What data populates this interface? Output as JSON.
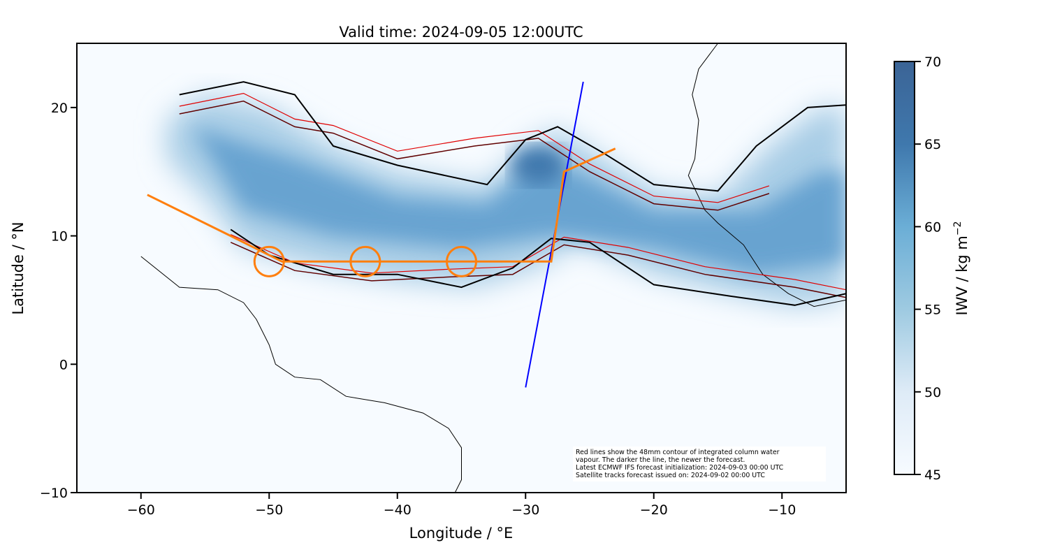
{
  "chart_data": {
    "type": "map",
    "title": "Valid time: 2024-09-05 12:00UTC",
    "xlabel": "Longitude / °E",
    "ylabel": "Latitude / °N",
    "xlim": [
      -65,
      -5
    ],
    "ylim": [
      -10,
      25
    ],
    "xticks": [
      -60,
      -50,
      -40,
      -30,
      -20,
      -10
    ],
    "xtick_labels": [
      "−60",
      "−50",
      "−40",
      "−30",
      "−20",
      "−10"
    ],
    "yticks": [
      -10,
      0,
      10,
      20
    ],
    "ytick_labels": [
      "−10",
      "0",
      "10",
      "20"
    ],
    "colorbar": {
      "label": "IWV / kg m",
      "label_sup": "−2",
      "range": [
        45,
        70
      ],
      "ticks": [
        45,
        50,
        55,
        60,
        65,
        70
      ],
      "tick_labels": [
        "45",
        "50",
        "55",
        "60",
        "65",
        "70"
      ],
      "colormap": [
        "#f7fbff",
        "#deebf7",
        "#9ecae1",
        "#6baed6",
        "#3f78ad",
        "#3b6496"
      ]
    },
    "orange_track": [
      [
        -59.5,
        13.2
      ],
      [
        -53,
        10
      ],
      [
        -49,
        8
      ],
      [
        -28,
        8
      ],
      [
        -27,
        15
      ],
      [
        -23,
        16.8
      ]
    ],
    "orange_circles": [
      [
        -50,
        8
      ],
      [
        -42.5,
        8
      ],
      [
        -35,
        8
      ]
    ],
    "blue_track": [
      [
        -30,
        -1.8
      ],
      [
        -25.5,
        22
      ]
    ],
    "iwv_band": [
      [
        -58,
        19
      ],
      [
        -55,
        21
      ],
      [
        -50,
        20
      ],
      [
        -45,
        17
      ],
      [
        -40,
        15
      ],
      [
        -33,
        14
      ],
      [
        -30,
        17
      ],
      [
        -27.5,
        18.3
      ],
      [
        -24,
        16
      ],
      [
        -20,
        13.5
      ],
      [
        -15,
        13
      ],
      [
        -11,
        17
      ],
      [
        -7,
        20
      ],
      [
        -5,
        20
      ],
      [
        -5,
        5
      ],
      [
        -9,
        4.5
      ],
      [
        -14,
        5.5
      ],
      [
        -20,
        7
      ],
      [
        -26,
        9.5
      ],
      [
        -29,
        7.5
      ],
      [
        -34,
        6
      ],
      [
        -40,
        6.5
      ],
      [
        -46,
        7.5
      ],
      [
        -52,
        9
      ],
      [
        -55,
        13
      ],
      [
        -58,
        16
      ]
    ],
    "iwv_core": [
      [
        -56,
        18.5
      ],
      [
        -48,
        16
      ],
      [
        -40,
        13
      ],
      [
        -33,
        12.5
      ],
      [
        -29,
        16
      ],
      [
        -26,
        15
      ],
      [
        -20,
        12
      ],
      [
        -12,
        12
      ],
      [
        -7,
        15
      ],
      [
        -5,
        15
      ],
      [
        -5,
        8
      ],
      [
        -12,
        7
      ],
      [
        -20,
        9
      ],
      [
        -28,
        10
      ],
      [
        -35,
        9
      ],
      [
        -45,
        10
      ],
      [
        -52,
        12
      ]
    ],
    "black_contour": [
      [
        -57,
        21
      ],
      [
        -52,
        22
      ],
      [
        -48,
        21
      ],
      [
        -45,
        17
      ],
      [
        -40,
        15.5
      ],
      [
        -33,
        14
      ],
      [
        -30,
        17.5
      ],
      [
        -27.5,
        18.5
      ],
      [
        -24,
        16.5
      ],
      [
        -20,
        14
      ],
      [
        -15,
        13.5
      ],
      [
        -12,
        17
      ],
      [
        -8,
        20
      ],
      [
        -5,
        20.2
      ]
    ],
    "black_contour_south": [
      [
        -5,
        5.5
      ],
      [
        -9,
        4.6
      ],
      [
        -14,
        5.3
      ],
      [
        -20,
        6.2
      ],
      [
        -25,
        9.5
      ],
      [
        -28,
        9.8
      ],
      [
        -31,
        7.5
      ],
      [
        -35,
        6
      ],
      [
        -40,
        7
      ],
      [
        -45,
        7
      ],
      [
        -50,
        8.5
      ],
      [
        -53,
        10.5
      ]
    ],
    "red_contour": [
      [
        -57,
        19.5
      ],
      [
        -52,
        20.5
      ],
      [
        -48,
        18.5
      ],
      [
        -45,
        18
      ],
      [
        -40,
        16
      ],
      [
        -34,
        17
      ],
      [
        -29,
        17.6
      ],
      [
        -25,
        15
      ],
      [
        -20,
        12.5
      ],
      [
        -15,
        12
      ],
      [
        -11,
        13.3
      ]
    ],
    "red_contour_south": [
      [
        -5,
        5.2
      ],
      [
        -9,
        6
      ],
      [
        -16,
        7
      ],
      [
        -22,
        8.5
      ],
      [
        -27,
        9.3
      ],
      [
        -31,
        7
      ],
      [
        -36,
        6.8
      ],
      [
        -42,
        6.5
      ],
      [
        -48,
        7.3
      ],
      [
        -53,
        9.5
      ]
    ],
    "coast_africa": [
      [
        -15,
        25
      ],
      [
        -16.5,
        23
      ],
      [
        -17,
        21
      ],
      [
        -16.5,
        19
      ],
      [
        -16.8,
        16
      ],
      [
        -17.3,
        14.7
      ],
      [
        -16,
        12
      ],
      [
        -15,
        11
      ],
      [
        -13,
        9.3
      ],
      [
        -11.5,
        7
      ],
      [
        -9.5,
        5.5
      ],
      [
        -7.5,
        4.5
      ],
      [
        -5,
        5
      ]
    ],
    "coast_sa": [
      [
        -60,
        8.4
      ],
      [
        -57,
        6
      ],
      [
        -54,
        5.8
      ],
      [
        -52,
        4.8
      ],
      [
        -51,
        3.5
      ],
      [
        -50,
        1.5
      ],
      [
        -49.5,
        0
      ],
      [
        -48,
        -1
      ],
      [
        -46,
        -1.2
      ],
      [
        -44,
        -2.5
      ],
      [
        -41,
        -3
      ],
      [
        -38,
        -3.8
      ],
      [
        -36,
        -5
      ],
      [
        -35,
        -6.5
      ],
      [
        -35,
        -9
      ],
      [
        -35.5,
        -10
      ]
    ],
    "coast_africa_top": [
      [
        -27,
        25
      ],
      [
        -22,
        25
      ]
    ],
    "note_lines": [
      "Red lines show the 48mm contour of integrated column water",
      "vapour. The darker the line, the newer the forecast.",
      "Latest ECMWF IFS forecast initialization: 2024-09-03 00:00 UTC",
      "Satellite tracks forecast issued on: 2024-09-02 00:00 UTC"
    ],
    "colors": {
      "orange": "#ff7f0e",
      "blue": "#0000ff",
      "red": "#e00000",
      "darkred": "#600000",
      "black": "#000000"
    }
  }
}
